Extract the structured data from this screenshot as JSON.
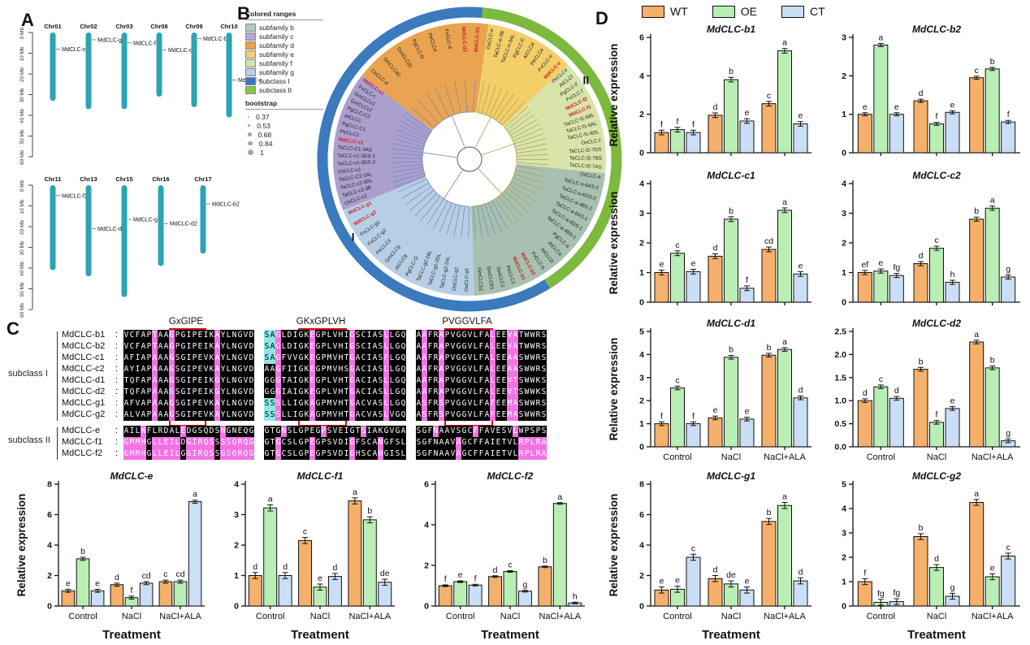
{
  "axis": {
    "ylabel": "Relative expression",
    "xtitle": "Treatment",
    "groups": [
      "Control",
      "NaCl",
      "NaCl+ALA"
    ],
    "series": [
      "WT",
      "OE",
      "CT"
    ]
  },
  "panel_a": {
    "label": "A",
    "color": "#2ba4b4",
    "scale_ticks": [
      "0 Mb",
      "10 Mb",
      "20 Mb",
      "30 Mb",
      "40 Mb",
      "50 Mb",
      "60 Mb"
    ],
    "rows": [
      {
        "chromosomes": [
          {
            "name": "Chr01",
            "length_mb": 33,
            "gene": "MdCLC-c1",
            "gene_mb": 8
          },
          {
            "name": "Chr02",
            "length_mb": 37,
            "gene": "MdCLC-g2",
            "gene_mb": 3.5
          },
          {
            "name": "Chr03",
            "length_mb": 37,
            "gene": "MdCLC-f1",
            "gene_mb": 5
          },
          {
            "name": "Chr08",
            "length_mb": 31,
            "gene": "MdCLC-c2",
            "gene_mb": 8.5
          },
          {
            "name": "Chr09",
            "length_mb": 36,
            "gene": "MdCLC-b1",
            "gene_mb": 3
          },
          {
            "name": "Chr10",
            "length_mb": 41,
            "gene": "MdCLC-e",
            "gene_mb": 23
          }
        ]
      },
      {
        "chromosomes": [
          {
            "name": "Chr11",
            "length_mb": 41,
            "gene": "MdCLC-f2",
            "gene_mb": 5
          },
          {
            "name": "Chr13",
            "length_mb": 44,
            "gene": "MdCLC-d1",
            "gene_mb": 21
          },
          {
            "name": "Chr15",
            "length_mb": 54,
            "gene": "MdCLC-g1",
            "gene_mb": 16.5
          },
          {
            "name": "Chr16",
            "length_mb": 39,
            "gene": "MdCLC-d2",
            "gene_mb": 18.5
          },
          {
            "name": "Chr17",
            "length_mb": 33,
            "gene": "MdCLC-b2",
            "gene_mb": 9
          }
        ]
      }
    ]
  },
  "panel_b": {
    "label": "B",
    "legend_title": "Colored ranges",
    "legend": [
      {
        "label": "subfamily b",
        "color": "#b5c7c3"
      },
      {
        "label": "subfamily c",
        "color": "#b4a7d1"
      },
      {
        "label": "subfamily d",
        "color": "#e8a14f"
      },
      {
        "label": "subfamily e",
        "color": "#f3cd7a"
      },
      {
        "label": "subfamily f",
        "color": "#cfe3b2"
      },
      {
        "label": "subfamily g",
        "color": "#b8cfe5"
      },
      {
        "label": "subclass I",
        "color": "#3a78be"
      },
      {
        "label": "subclass II",
        "color": "#8bc53f"
      }
    ],
    "bootstrap_title": "bootstrap",
    "bootstrap": [
      "0.37",
      "0.53",
      "0.68",
      "0.84",
      "1"
    ],
    "ring": {
      "subclass1_label": "I",
      "subclass2_label": "II",
      "subclass1_color": "#3a7abd",
      "subclass2_color": "#7db93f",
      "green_start": 5,
      "green_end": 148
    },
    "highlight_color": "#cc2222",
    "sectors": [
      {
        "name": "subfamily d",
        "color": "#e9a351",
        "start": -52,
        "end": 8,
        "tips": [
          "OsCLC-d",
          "GmCLCd2",
          "GmCLCd1",
          "PgCLC-D",
          "PtrCLCd",
          "FvCLC-d",
          "MdCLC-d2",
          "MdCLC-d1"
        ]
      },
      {
        "name": "subfamily e",
        "color": "#f4ce69",
        "start": 8,
        "end": 46,
        "tips": [
          "OsCLC-e",
          "TaCLC-e-3B",
          "TaCLC-e-3AL",
          "PgCLC-E",
          "AtCLCd",
          "PtrCLCe",
          "FvCLC-e",
          "MdCLC-e"
        ]
      },
      {
        "name": "subfamily f",
        "color": "#d9e4ab",
        "start": 46,
        "end": 96,
        "tips": [
          "PtrCLC4",
          "AtCLCf",
          "PgCLC-F",
          "FvCLC-f",
          "MdCLC-f2",
          "MdCLC-f1",
          "TaCLC-f1-6BL",
          "TaCLC-f1-6AL",
          "TaCLC-f1-6DL",
          "OsCLC-f",
          "TaCLC-f2-7DS",
          "TaCLC-f2-7BS",
          "TaCLC-f2-7AS"
        ]
      },
      {
        "name": "subfamily b",
        "color": "#a7c0b1",
        "start": 96,
        "end": 178,
        "tips": [
          "OsCLC-a",
          "TaCLC-a-6AS-2",
          "TaCLC-a-6DS-2",
          "TaCLC-a-4BS-2",
          "TaCLC-a-6AS-1",
          "TaCLC-a-6DS-1",
          "TaCLC-a-4BS-1",
          "PgCLC-a",
          "AtCLCa",
          "AtCLCb",
          "FvCLC-b",
          "MdCLC-b2",
          "MdCLC-b1",
          "PtrCLC1",
          "GmCLC1",
          "GmCLCb1",
          "GmCLCb2"
        ]
      },
      {
        "name": "subfamily g",
        "color": "#b7cfe6",
        "start": 178,
        "end": 248,
        "tips": [
          "OsCLC-g1",
          "OsCLC-g2",
          "TaCLC-g2-2AL",
          "TaCLC-g2-2DL",
          "TaCLC-g2-2BL",
          "PgCLC-G",
          "AtCLCg",
          "GmCLCg",
          "PtrCLC3",
          "FvCLC-g2",
          "FvCLC-g1",
          "MdCLC-g2",
          "MdCLC-g1"
        ]
      },
      {
        "name": "subfamily c",
        "color": "#ab9fcd",
        "start": 248,
        "end": 308,
        "tips": [
          "OsCLC-c2",
          "TaCLC-c2-3B",
          "TaCLC-c2-3DL",
          "TaCLC-C2-3AL",
          "OsCLC-c1",
          "TaCLC-c1-3DS-2",
          "TaCLC-c1-3DS-1",
          "TaCLC-C1-3AS",
          "MdCLC-c2",
          "PtrCLC2",
          "PgCLC-C1",
          "AtCLCc",
          "PgCLC-C2",
          "GmCLCc2",
          "GmCLCc1",
          "FvCLC-c",
          "MdCLC-c1"
        ]
      }
    ]
  },
  "panel_c": {
    "label": "C",
    "motifs": [
      "GxGIPE",
      "GKxGPLVH",
      "PVGGVLFA"
    ],
    "subclass_labels": [
      "subclass I",
      "subclass II"
    ],
    "colors": {
      "bg": "#000000",
      "pink": "#f472e6",
      "cyan": "#8ee6e6",
      "box": "#cc1111"
    },
    "rows": [
      {
        "name": "MdCLC-b1",
        "subclass": 1,
        "blocks": [
          "VCFAPTAAGPGIPEIKAYLNGVD",
          "SAGLDIGKEGPLVHIGSCIASLLGQ",
          "AAFRAPVGGVLFALEEVATWWRS"
        ]
      },
      {
        "name": "MdCLC-b2",
        "subclass": 1,
        "blocks": [
          "VCFAPTAAGPGIPEIKAYLNGVD",
          "SAGLDIGKEGPLVHIGSCIASLLGQ",
          "AAFRAPVGGVLFALEEVATWWRS"
        ]
      },
      {
        "name": "MdCLC-c1",
        "subclass": 1,
        "blocks": [
          "AFIAPAAAGSGIPEVKAYLNGVD",
          "SAGFVVGKEGPMVHTGACIASFLGQ",
          "AAFRAPVGGVLFALEEAASWWRS"
        ]
      },
      {
        "name": "MdCLC-c2",
        "subclass": 1,
        "blocks": [
          "AYIAPAAAGSGIPEVKAYLNGVD",
          "AAGFIIGKEGPMVHSGACIASLLGQ",
          "AAFRAPVGGVLFALEEAASWWRS"
        ]
      },
      {
        "name": "MdCLC-d1",
        "subclass": 1,
        "blocks": [
          "TQFAPAAAGSGIPEIKGYLNGVD",
          "GGGTAIGKEGPLVHTGACIASLLGQ",
          "AAFRAPVGGVLFALEEVTSWWKS"
        ]
      },
      {
        "name": "MdCLC-d2",
        "subclass": 1,
        "blocks": [
          "TQFAPAAAGSGIPEIKGYLNGVD",
          "GGGIAIGKEGPLVHTGACIASLLGQ",
          "AAFRAPVGGVLFALEEVTSWWKS"
        ]
      },
      {
        "name": "MdCLC-g1",
        "subclass": 1,
        "blocks": [
          "AFVAPAAAGSGIPEVKAYLNGVD",
          "SSSLLIGKAGPMVHTGACVASLLGQ",
          "ASFRSPVGGVLFAFEEMASWWRS"
        ]
      },
      {
        "name": "MdCLC-g2",
        "subclass": 1,
        "blocks": [
          "ALVAPAAAGSGIPEVKAYLNGVD",
          "SSSLLIGKAGPMVHTGACVASLVGQ",
          "ASFRSPVGGVLFAFEEMASWWRS"
        ]
      },
      {
        "name": "MdCLC-e",
        "subclass": 2,
        "blocks": [
          "AILNFLRDALEDGSQDSNGNEQG",
          "GTGNSLGPEGPSVEIGTSIAKGVGA",
          "SGFNAAVSGCFFAVESVLWPSPS"
        ]
      },
      {
        "name": "MdCLC-f1",
        "subclass": 2,
        "blocks": [
          "GMMHGLLEILDGIRQSSSSQRQG",
          "GTGCSLGPEGPSVDIGFSCANGFSL",
          "SGFNAAVAGCFFAIETVLRPLRA"
        ]
      },
      {
        "name": "MdCLC-f2",
        "subclass": 2,
        "blocks": [
          "GMMHGLLEILGGIRQSSGSQRQG",
          "GTGCSLGPEGPSVDIGHSCANGISL",
          "SGFNAAVAGCFFAIETVLRPLRA"
        ]
      }
    ]
  },
  "panel_d": {
    "label": "D",
    "legend": [
      {
        "label": "WT",
        "color": "#f5b06b"
      },
      {
        "label": "OE",
        "color": "#b9eeb4"
      },
      {
        "label": "CT",
        "color": "#cadef5"
      }
    ]
  },
  "chart_data": [
    {
      "id": "mdclc-b1",
      "type": "bar",
      "title": "MdCLC-b1",
      "ylim": [
        0,
        6
      ],
      "yticks": [
        "0",
        "2",
        "4",
        "6"
      ],
      "err": 0.12,
      "categories": [
        "Control",
        "NaCl",
        "NaCl+ALA"
      ],
      "series": [
        {
          "name": "WT",
          "values": [
            1.05,
            1.95,
            2.55
          ],
          "letters": [
            "f",
            "d",
            "c"
          ]
        },
        {
          "name": "OE",
          "values": [
            1.2,
            3.8,
            5.3
          ],
          "letters": [
            "f",
            "b",
            "a"
          ]
        },
        {
          "name": "CT",
          "values": [
            1.05,
            1.65,
            1.5
          ],
          "letters": [
            "f",
            "e",
            "e"
          ]
        }
      ]
    },
    {
      "id": "mdclc-b2",
      "type": "bar",
      "title": "MdCLC-b2",
      "ylim": [
        0,
        3
      ],
      "yticks": [
        "0",
        "1",
        "2",
        "3"
      ],
      "err": 0.04,
      "categories": [
        "Control",
        "NaCl",
        "NaCl+ALA"
      ],
      "series": [
        {
          "name": "WT",
          "values": [
            1.0,
            1.35,
            1.95
          ],
          "letters": [
            "e",
            "d",
            "c"
          ]
        },
        {
          "name": "OE",
          "values": [
            2.8,
            0.75,
            2.18
          ],
          "letters": [
            "a",
            "f",
            "b"
          ]
        },
        {
          "name": "CT",
          "values": [
            1.0,
            1.05,
            0.8
          ],
          "letters": [
            "e",
            "e",
            "f"
          ]
        }
      ]
    },
    {
      "id": "mdclc-c1",
      "type": "bar",
      "title": "MdCLC-c1",
      "ylim": [
        0,
        4
      ],
      "yticks": [
        "0",
        "1",
        "2",
        "3",
        "4"
      ],
      "err": 0.08,
      "categories": [
        "Control",
        "NaCl",
        "NaCl+ALA"
      ],
      "series": [
        {
          "name": "WT",
          "values": [
            1.0,
            1.55,
            1.78
          ],
          "letters": [
            "e",
            "d",
            "cd"
          ]
        },
        {
          "name": "OE",
          "values": [
            1.65,
            2.8,
            3.1
          ],
          "letters": [
            "c",
            "b",
            "a"
          ]
        },
        {
          "name": "CT",
          "values": [
            1.03,
            0.47,
            0.95
          ],
          "letters": [
            "e",
            "f",
            "e"
          ]
        }
      ]
    },
    {
      "id": "mdclc-c2",
      "type": "bar",
      "title": "MdCLC-c2",
      "ylim": [
        0,
        4
      ],
      "yticks": [
        "0",
        "1",
        "2",
        "3",
        "4"
      ],
      "err": 0.07,
      "categories": [
        "Control",
        "NaCl",
        "NaCl+ALA"
      ],
      "series": [
        {
          "name": "WT",
          "values": [
            1.0,
            1.3,
            2.8
          ],
          "letters": [
            "ef",
            "d",
            "b"
          ]
        },
        {
          "name": "OE",
          "values": [
            1.05,
            1.82,
            3.17
          ],
          "letters": [
            "e",
            "c",
            "a"
          ]
        },
        {
          "name": "CT",
          "values": [
            0.9,
            0.67,
            0.85
          ],
          "letters": [
            "fg",
            "h",
            "g"
          ]
        }
      ]
    },
    {
      "id": "mdclc-d1",
      "type": "bar",
      "title": "MdCLC-d1",
      "ylim": [
        0,
        5
      ],
      "yticks": [
        "0",
        "1",
        "2",
        "3",
        "4",
        "5"
      ],
      "err": 0.08,
      "categories": [
        "Control",
        "NaCl",
        "NaCl+ALA"
      ],
      "series": [
        {
          "name": "WT",
          "values": [
            1.0,
            1.25,
            3.97
          ],
          "letters": [
            "f",
            "e",
            "b"
          ]
        },
        {
          "name": "OE",
          "values": [
            2.55,
            3.88,
            4.22
          ],
          "letters": [
            "c",
            "b",
            "a"
          ]
        },
        {
          "name": "CT",
          "values": [
            1.0,
            1.2,
            2.12
          ],
          "letters": [
            "f",
            "e",
            "d"
          ]
        }
      ]
    },
    {
      "id": "mdclc-d2",
      "type": "bar",
      "title": "MdCLC-d2",
      "ylim": [
        0,
        2.5
      ],
      "yticks": [
        "0.0",
        "0.5",
        "1.0",
        "1.5",
        "2.0",
        "2.5"
      ],
      "err": 0.04,
      "categories": [
        "Control",
        "NaCl",
        "NaCl+ALA"
      ],
      "series": [
        {
          "name": "WT",
          "values": [
            1.0,
            1.68,
            2.27
          ],
          "letters": [
            "d",
            "b",
            "a"
          ]
        },
        {
          "name": "OE",
          "values": [
            1.3,
            0.53,
            1.71
          ],
          "letters": [
            "c",
            "f",
            "b"
          ]
        },
        {
          "name": "CT",
          "values": [
            1.05,
            0.83,
            0.13
          ],
          "letters": [
            "d",
            "e",
            "g"
          ]
        }
      ]
    },
    {
      "id": "mdclc-g1",
      "type": "bar",
      "title": "MdCLC-g1",
      "ylim": [
        0,
        8
      ],
      "yticks": [
        "0",
        "2",
        "4",
        "6",
        "8"
      ],
      "err": 0.2,
      "categories": [
        "Control",
        "NaCl",
        "NaCl+ALA"
      ],
      "series": [
        {
          "name": "WT",
          "values": [
            1.05,
            1.8,
            5.55
          ],
          "letters": [
            "e",
            "d",
            "b"
          ]
        },
        {
          "name": "OE",
          "values": [
            1.1,
            1.45,
            6.6
          ],
          "letters": [
            "e",
            "de",
            "a"
          ]
        },
        {
          "name": "CT",
          "values": [
            3.2,
            1.05,
            1.65
          ],
          "letters": [
            "c",
            "e",
            "d"
          ]
        }
      ]
    },
    {
      "id": "mdclc-g2",
      "type": "bar",
      "title": "MdCLC-g2",
      "ylim": [
        0,
        5
      ],
      "yticks": [
        "0",
        "1",
        "2",
        "3",
        "4",
        "5"
      ],
      "err": 0.12,
      "categories": [
        "Control",
        "NaCl",
        "NaCl+ALA"
      ],
      "series": [
        {
          "name": "WT",
          "values": [
            1.0,
            2.85,
            4.25
          ],
          "letters": [
            "f",
            "b",
            "a"
          ]
        },
        {
          "name": "OE",
          "values": [
            0.15,
            1.58,
            1.2
          ],
          "letters": [
            "fg",
            "d",
            "e"
          ]
        },
        {
          "name": "CT",
          "values": [
            0.18,
            0.4,
            2.05
          ],
          "letters": [
            "fg",
            "g",
            "c"
          ]
        }
      ]
    },
    {
      "id": "mdclc-e",
      "type": "bar",
      "title": "MdCLC-e",
      "ylim": [
        0,
        8
      ],
      "yticks": [
        "0",
        "2",
        "4",
        "6",
        "8"
      ],
      "err": 0.1,
      "categories": [
        "Control",
        "NaCl",
        "NaCl+ALA"
      ],
      "series": [
        {
          "name": "WT",
          "values": [
            1.0,
            1.4,
            1.6
          ],
          "letters": [
            "e",
            "d",
            "c"
          ]
        },
        {
          "name": "OE",
          "values": [
            3.1,
            0.55,
            1.6
          ],
          "letters": [
            "b",
            "f",
            "cd"
          ]
        },
        {
          "name": "CT",
          "values": [
            1.0,
            1.5,
            6.85
          ],
          "letters": [
            "e",
            "cd",
            "a"
          ]
        }
      ]
    },
    {
      "id": "mdclc-f1",
      "type": "bar",
      "title": "MdCLC-f1",
      "ylim": [
        0,
        4
      ],
      "yticks": [
        "0",
        "1",
        "2",
        "3",
        "4"
      ],
      "err": 0.1,
      "categories": [
        "Control",
        "NaCl",
        "NaCl+ALA"
      ],
      "series": [
        {
          "name": "WT",
          "values": [
            1.0,
            2.15,
            3.45
          ],
          "letters": [
            "d",
            "c",
            "a"
          ]
        },
        {
          "name": "OE",
          "values": [
            3.22,
            0.62,
            2.83
          ],
          "letters": [
            "a",
            "e",
            "b"
          ]
        },
        {
          "name": "CT",
          "values": [
            1.0,
            0.97,
            0.78
          ],
          "letters": [
            "d",
            "d",
            "de"
          ]
        }
      ]
    },
    {
      "id": "mdclc-f2",
      "type": "bar",
      "title": "MdCLC-f2",
      "ylim": [
        0,
        6
      ],
      "yticks": [
        "0",
        "2",
        "4",
        "6"
      ],
      "err": 0.04,
      "categories": [
        "Control",
        "NaCl",
        "NaCl+ALA"
      ],
      "series": [
        {
          "name": "WT",
          "values": [
            1.0,
            1.45,
            1.93
          ],
          "letters": [
            "f",
            "d",
            "b"
          ]
        },
        {
          "name": "OE",
          "values": [
            1.2,
            1.7,
            5.05
          ],
          "letters": [
            "e",
            "c",
            "a"
          ]
        },
        {
          "name": "CT",
          "values": [
            1.03,
            0.73,
            0.15
          ],
          "letters": [
            "f",
            "g",
            "h"
          ]
        }
      ]
    }
  ]
}
